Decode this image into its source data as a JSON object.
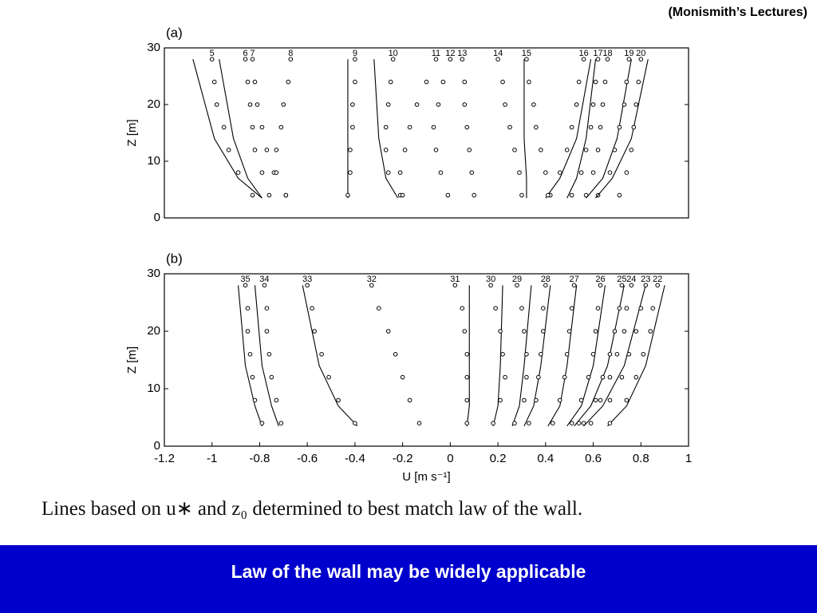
{
  "header": "(Monismith’s Lectures)",
  "caption": "Lines based on u∗ and z₀ determined to best match law of the wall.",
  "banner": "Law of the wall may be widely applicable",
  "chart_data": [
    {
      "type": "line",
      "title": "(a)",
      "ylabel": "Z [m]",
      "xlim": [
        -1.2,
        1
      ],
      "ylim": [
        0,
        30
      ],
      "yticks": [
        0,
        10,
        20,
        30
      ],
      "z": [
        4,
        8,
        12,
        16,
        20,
        24,
        28
      ],
      "fit_z": [
        3.5,
        7,
        14,
        28
      ],
      "series": [
        {
          "name": "5",
          "values": [
            -0.83,
            -0.89,
            -0.93,
            -0.95,
            -0.98,
            -0.99,
            -1.0
          ],
          "fit": [
            -0.79,
            -0.89,
            -0.99,
            -1.08
          ]
        },
        {
          "name": "6",
          "values": [
            -0.76,
            -0.79,
            -0.82,
            -0.83,
            -0.84,
            -0.85,
            -0.86
          ],
          "fit": [
            -0.79,
            -0.85,
            -0.91,
            -0.97
          ]
        },
        {
          "name": "7",
          "values": [
            -0.69,
            -0.74,
            -0.77,
            -0.79,
            -0.81,
            -0.82,
            -0.83
          ]
        },
        {
          "name": "8",
          "values": [
            -0.69,
            -0.73,
            -0.73,
            -0.71,
            -0.7,
            -0.68,
            -0.67
          ]
        },
        {
          "name": "9",
          "values": [
            -0.43,
            -0.42,
            -0.42,
            -0.41,
            -0.41,
            -0.4,
            -0.4
          ],
          "fit": [
            -0.43,
            -0.43,
            -0.43,
            -0.43
          ]
        },
        {
          "name": "10",
          "values": [
            -0.21,
            -0.26,
            -0.27,
            -0.27,
            -0.26,
            -0.25,
            -0.24
          ],
          "fit": [
            -0.22,
            -0.27,
            -0.3,
            -0.32
          ]
        },
        {
          "name": "11",
          "values": [
            -0.2,
            -0.21,
            -0.19,
            -0.17,
            -0.14,
            -0.1,
            -0.06
          ]
        },
        {
          "name": "12",
          "values": [
            -0.01,
            -0.04,
            -0.06,
            -0.07,
            -0.05,
            -0.03,
            0.0
          ]
        },
        {
          "name": "13",
          "values": [
            0.1,
            0.09,
            0.08,
            0.07,
            0.06,
            0.06,
            0.05
          ]
        },
        {
          "name": "14",
          "values": [
            0.3,
            0.29,
            0.27,
            0.25,
            0.23,
            0.22,
            0.2
          ]
        },
        {
          "name": "15",
          "values": [
            0.42,
            0.4,
            0.38,
            0.36,
            0.35,
            0.33,
            0.32
          ],
          "fit": [
            0.32,
            0.32,
            0.31,
            0.31
          ]
        },
        {
          "name": "16",
          "values": [
            0.41,
            0.46,
            0.49,
            0.51,
            0.53,
            0.54,
            0.56
          ],
          "fit": [
            0.4,
            0.46,
            0.53,
            0.59
          ]
        },
        {
          "name": "17",
          "values": [
            0.51,
            0.55,
            0.57,
            0.59,
            0.6,
            0.61,
            0.62
          ],
          "fit": [
            0.49,
            0.53,
            0.57,
            0.61
          ]
        },
        {
          "name": "18",
          "values": [
            0.57,
            0.6,
            0.62,
            0.63,
            0.64,
            0.65,
            0.66
          ]
        },
        {
          "name": "19",
          "values": [
            0.62,
            0.67,
            0.69,
            0.71,
            0.73,
            0.74,
            0.75
          ],
          "fit": [
            0.57,
            0.64,
            0.7,
            0.76
          ]
        },
        {
          "name": "20",
          "values": [
            0.71,
            0.74,
            0.76,
            0.77,
            0.78,
            0.79,
            0.8
          ],
          "fit": [
            0.61,
            0.68,
            0.76,
            0.83
          ]
        }
      ]
    },
    {
      "type": "line",
      "title": "(b)",
      "ylabel": "Z [m]",
      "xlabel": "U [m s⁻¹]",
      "xlim": [
        -1.2,
        1
      ],
      "ylim": [
        0,
        30
      ],
      "yticks": [
        0,
        10,
        20,
        30
      ],
      "xticks": [
        -1.2,
        -1,
        -0.8,
        -0.6,
        -0.4,
        -0.2,
        0,
        0.2,
        0.4,
        0.6,
        0.8,
        1
      ],
      "z": [
        4,
        8,
        12,
        16,
        20,
        24,
        28
      ],
      "fit_z": [
        3.5,
        7,
        14,
        28
      ],
      "series": [
        {
          "name": "35",
          "values": [
            -0.79,
            -0.82,
            -0.83,
            -0.84,
            -0.85,
            -0.85,
            -0.86
          ],
          "fit": [
            -0.79,
            -0.82,
            -0.86,
            -0.89
          ]
        },
        {
          "name": "34",
          "values": [
            -0.71,
            -0.73,
            -0.75,
            -0.76,
            -0.77,
            -0.77,
            -0.78
          ],
          "fit": [
            -0.72,
            -0.75,
            -0.79,
            -0.82
          ]
        },
        {
          "name": "33",
          "values": [
            -0.4,
            -0.47,
            -0.51,
            -0.54,
            -0.57,
            -0.58,
            -0.6
          ],
          "fit": [
            -0.39,
            -0.47,
            -0.55,
            -0.62
          ]
        },
        {
          "name": "32",
          "values": [
            -0.13,
            -0.17,
            -0.2,
            -0.23,
            -0.26,
            -0.3,
            -0.33
          ]
        },
        {
          "name": "31",
          "values": [
            0.07,
            0.07,
            0.07,
            0.07,
            0.06,
            0.05,
            0.02
          ],
          "fit": [
            0.07,
            0.08,
            0.08,
            0.08
          ]
        },
        {
          "name": "30",
          "values": [
            0.18,
            0.21,
            0.23,
            0.22,
            0.21,
            0.19,
            0.17
          ],
          "fit": [
            0.18,
            0.2,
            0.21,
            0.22
          ]
        },
        {
          "name": "29",
          "values": [
            0.27,
            0.31,
            0.32,
            0.32,
            0.31,
            0.3,
            0.28
          ],
          "fit": [
            0.26,
            0.29,
            0.31,
            0.34
          ]
        },
        {
          "name": "28",
          "values": [
            0.33,
            0.36,
            0.37,
            0.38,
            0.39,
            0.39,
            0.4
          ],
          "fit": [
            0.31,
            0.35,
            0.38,
            0.42
          ]
        },
        {
          "name": "27",
          "values": [
            0.43,
            0.46,
            0.48,
            0.49,
            0.5,
            0.51,
            0.52
          ],
          "fit": [
            0.41,
            0.46,
            0.49,
            0.53
          ]
        },
        {
          "name": "26",
          "values": [
            0.51,
            0.55,
            0.58,
            0.6,
            0.61,
            0.62,
            0.63
          ],
          "fit": [
            0.49,
            0.55,
            0.6,
            0.65
          ]
        },
        {
          "name": "25",
          "values": [
            0.54,
            0.61,
            0.64,
            0.67,
            0.69,
            0.71,
            0.72
          ],
          "fit": [
            0.52,
            0.59,
            0.66,
            0.73
          ]
        },
        {
          "name": "24",
          "values": [
            0.56,
            0.63,
            0.67,
            0.7,
            0.73,
            0.74,
            0.76
          ]
        },
        {
          "name": "23",
          "values": [
            0.59,
            0.67,
            0.72,
            0.75,
            0.78,
            0.8,
            0.82
          ],
          "fit": [
            0.56,
            0.64,
            0.73,
            0.82
          ]
        },
        {
          "name": "22",
          "values": [
            0.67,
            0.74,
            0.78,
            0.81,
            0.84,
            0.85,
            0.87
          ],
          "fit": [
            0.66,
            0.74,
            0.82,
            0.9
          ]
        }
      ]
    }
  ]
}
